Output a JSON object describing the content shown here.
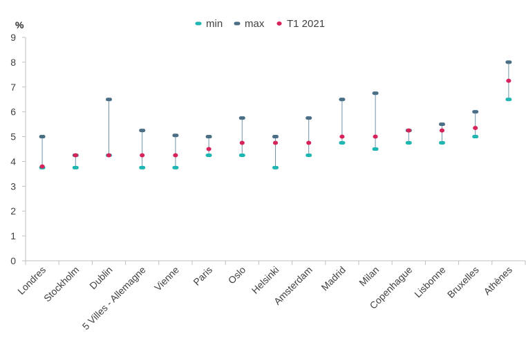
{
  "chart_data": {
    "type": "scatter",
    "unit_label": "%",
    "categories": [
      "Londres",
      "Stockholm",
      "Dublin",
      "5 Villes - Allemagne",
      "Vienne",
      "Paris",
      "Oslo",
      "Helsinki",
      "Amsterdam",
      "Madrid",
      "Milan",
      "Copenhague",
      "Lisbonne",
      "Bruxelles",
      "Athènes"
    ],
    "series": [
      {
        "name": "min",
        "color": "#1fb5b0",
        "values": [
          3.75,
          3.75,
          4.25,
          3.75,
          3.75,
          4.25,
          4.25,
          3.75,
          4.25,
          4.75,
          4.5,
          4.75,
          4.75,
          5.0,
          6.5
        ]
      },
      {
        "name": "max",
        "color": "#4a6f85",
        "values": [
          5.0,
          4.25,
          6.5,
          5.25,
          5.05,
          5.0,
          5.75,
          5.0,
          5.75,
          6.5,
          6.75,
          5.25,
          5.5,
          6.0,
          8.0
        ]
      },
      {
        "name": "T1 2021",
        "color": "#d6245a",
        "values": [
          3.8,
          4.25,
          4.25,
          4.25,
          4.25,
          4.5,
          4.75,
          4.75,
          4.75,
          5.0,
          5.0,
          5.25,
          5.25,
          5.35,
          7.25
        ]
      }
    ],
    "ylim": [
      0,
      9
    ],
    "yticks": [
      "0",
      "1",
      "2",
      "3",
      "4",
      "5",
      "6",
      "7",
      "8",
      "9"
    ],
    "grid": false,
    "legend_position": "top-center"
  }
}
